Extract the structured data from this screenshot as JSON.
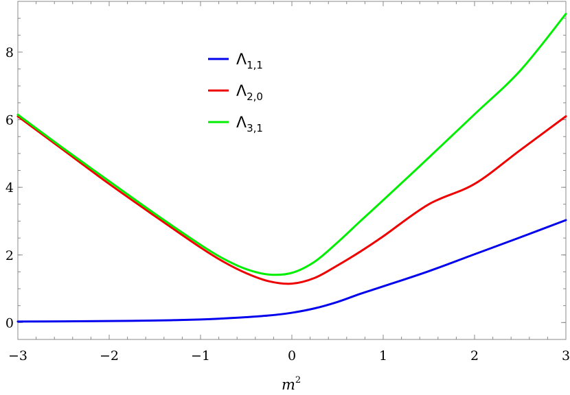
{
  "chart_data": {
    "type": "line",
    "title": "",
    "xlabel": "m",
    "xlabel_sup": "2",
    "ylabel": "",
    "xlim": [
      -3,
      3
    ],
    "ylim": [
      -0.5,
      9.5
    ],
    "x_ticks": [
      -3,
      -2,
      -1,
      0,
      1,
      2,
      3
    ],
    "x_tick_labels": [
      "−3",
      "−2",
      "−1",
      "0",
      "1",
      "2",
      "3"
    ],
    "y_ticks": [
      0,
      2,
      4,
      6,
      8
    ],
    "y_tick_labels": [
      "0",
      "2",
      "4",
      "6",
      "8"
    ],
    "grid": false,
    "legend_position": "top-center",
    "x": [
      -3,
      -2.5,
      -2,
      -1.5,
      -1,
      -0.75,
      -0.5,
      -0.25,
      0,
      0.25,
      0.5,
      0.75,
      1,
      1.5,
      2,
      2.5,
      3
    ],
    "series": [
      {
        "name": "Λ",
        "name_sub": "1,1",
        "color": "#0000ee",
        "values": [
          0.03,
          0.035,
          0.045,
          0.06,
          0.09,
          0.12,
          0.16,
          0.21,
          0.29,
          0.42,
          0.61,
          0.85,
          1.07,
          1.52,
          2.02,
          2.52,
          3.03
        ]
      },
      {
        "name": "Λ",
        "name_sub": "2,0",
        "color": "#ee0000",
        "values": [
          6.1,
          5.1,
          4.1,
          3.15,
          2.22,
          1.8,
          1.46,
          1.22,
          1.15,
          1.32,
          1.69,
          2.1,
          2.55,
          3.5,
          4.1,
          5.1,
          6.1
        ]
      },
      {
        "name": "Λ",
        "name_sub": "3,1",
        "color": "#00ee00",
        "values": [
          6.15,
          5.15,
          4.18,
          3.22,
          2.3,
          1.89,
          1.58,
          1.42,
          1.47,
          1.8,
          2.37,
          3.0,
          3.62,
          4.88,
          6.16,
          7.45,
          9.13
        ]
      }
    ]
  }
}
